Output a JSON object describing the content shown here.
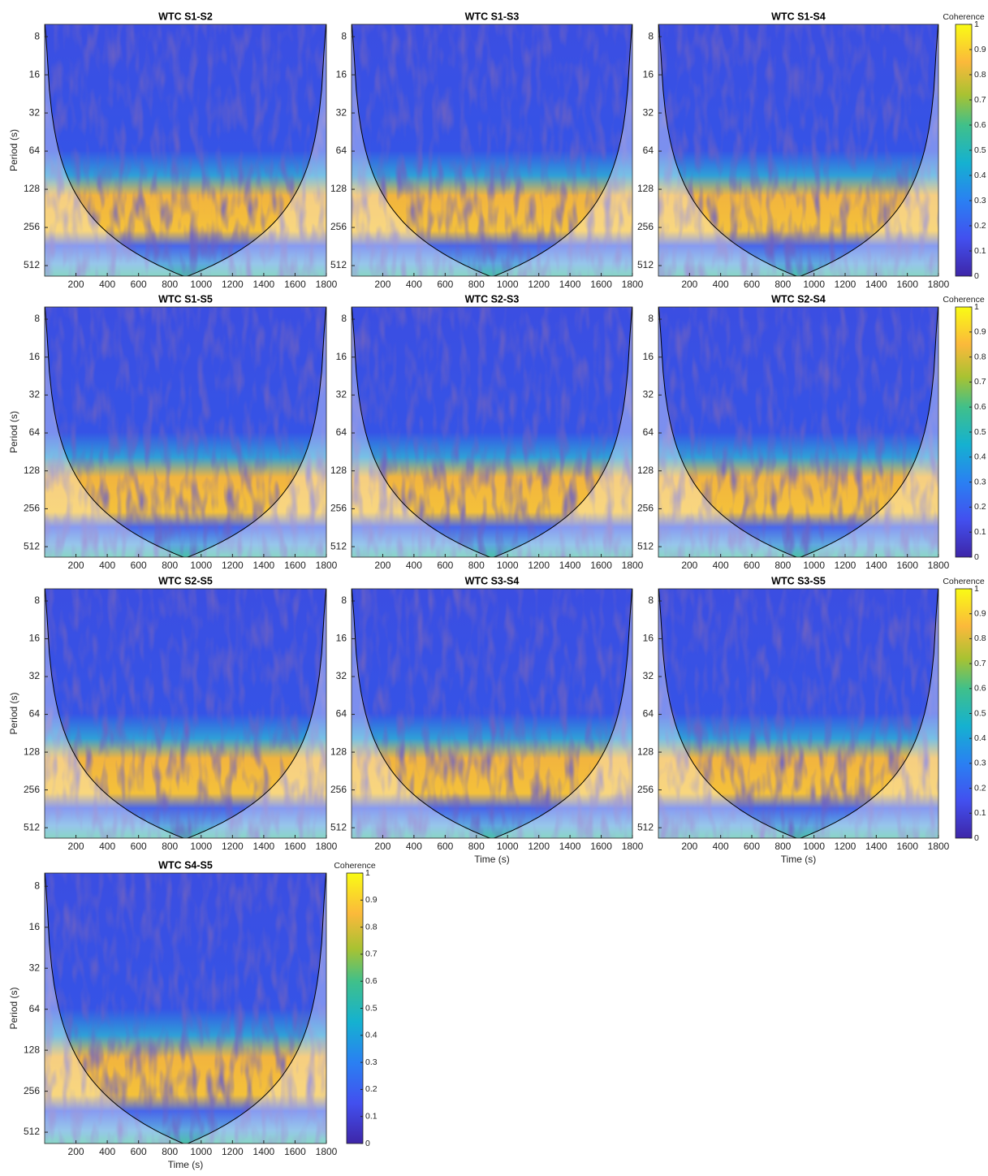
{
  "chart_data": [
    {
      "type": "heatmap",
      "title": "WTC S1-S2",
      "ylabel": "Period (s)",
      "xlim": [
        0,
        1800
      ],
      "xticks": [
        200,
        400,
        600,
        800,
        1000,
        1200,
        1400,
        1600,
        1800
      ],
      "ylim": [
        6.4,
        620
      ],
      "yticks": [
        8,
        16,
        32,
        64,
        128,
        256,
        512
      ],
      "ylog": true
    },
    {
      "type": "heatmap",
      "title": "WTC S1-S3",
      "xlim": [
        0,
        1800
      ],
      "xticks": [
        200,
        400,
        600,
        800,
        1000,
        1200,
        1400,
        1600,
        1800
      ],
      "ylim": [
        6.4,
        620
      ],
      "yticks": [
        8,
        16,
        32,
        64,
        128,
        256,
        512
      ],
      "ylog": true
    },
    {
      "type": "heatmap",
      "title": "WTC S1-S4",
      "xlim": [
        0,
        1800
      ],
      "xticks": [
        200,
        400,
        600,
        800,
        1000,
        1200,
        1400,
        1600,
        1800
      ],
      "ylim": [
        6.4,
        620
      ],
      "yticks": [
        8,
        16,
        32,
        64,
        128,
        256,
        512
      ],
      "ylog": true,
      "colorbar": {
        "label": "Coherence",
        "lim": [
          0,
          1
        ],
        "ticks": [
          0,
          0.1,
          0.2,
          0.3,
          0.4,
          0.5,
          0.6,
          0.7,
          0.8,
          0.9,
          1
        ]
      }
    },
    {
      "type": "heatmap",
      "title": "WTC S1-S5",
      "ylabel": "Period (s)",
      "xlim": [
        0,
        1800
      ],
      "xticks": [
        200,
        400,
        600,
        800,
        1000,
        1200,
        1400,
        1600,
        1800
      ],
      "ylim": [
        6.4,
        620
      ],
      "yticks": [
        8,
        16,
        32,
        64,
        128,
        256,
        512
      ],
      "ylog": true
    },
    {
      "type": "heatmap",
      "title": "WTC S2-S3",
      "xlim": [
        0,
        1800
      ],
      "xticks": [
        200,
        400,
        600,
        800,
        1000,
        1200,
        1400,
        1600,
        1800
      ],
      "ylim": [
        6.4,
        620
      ],
      "yticks": [
        8,
        16,
        32,
        64,
        128,
        256,
        512
      ],
      "ylog": true
    },
    {
      "type": "heatmap",
      "title": "WTC S2-S4",
      "xlim": [
        0,
        1800
      ],
      "xticks": [
        200,
        400,
        600,
        800,
        1000,
        1200,
        1400,
        1600,
        1800
      ],
      "ylim": [
        6.4,
        620
      ],
      "yticks": [
        8,
        16,
        32,
        64,
        128,
        256,
        512
      ],
      "ylog": true,
      "colorbar": {
        "label": "Coherence",
        "lim": [
          0,
          1
        ],
        "ticks": [
          0,
          0.1,
          0.2,
          0.3,
          0.4,
          0.5,
          0.6,
          0.7,
          0.8,
          0.9,
          1
        ]
      }
    },
    {
      "type": "heatmap",
      "title": "WTC S2-S5",
      "ylabel": "Period (s)",
      "xlim": [
        0,
        1800
      ],
      "xticks": [
        200,
        400,
        600,
        800,
        1000,
        1200,
        1400,
        1600,
        1800
      ],
      "ylim": [
        6.4,
        620
      ],
      "yticks": [
        8,
        16,
        32,
        64,
        128,
        256,
        512
      ],
      "ylog": true
    },
    {
      "type": "heatmap",
      "title": "WTC S3-S4",
      "xlabel": "Time (s)",
      "xlim": [
        0,
        1800
      ],
      "xticks": [
        200,
        400,
        600,
        800,
        1000,
        1200,
        1400,
        1600,
        1800
      ],
      "ylim": [
        6.4,
        620
      ],
      "yticks": [
        8,
        16,
        32,
        64,
        128,
        256,
        512
      ],
      "ylog": true
    },
    {
      "type": "heatmap",
      "title": "WTC S3-S5",
      "xlabel": "Time (s)",
      "xlim": [
        0,
        1800
      ],
      "xticks": [
        200,
        400,
        600,
        800,
        1000,
        1200,
        1400,
        1600,
        1800
      ],
      "ylim": [
        6.4,
        620
      ],
      "yticks": [
        8,
        16,
        32,
        64,
        128,
        256,
        512
      ],
      "ylog": true,
      "colorbar": {
        "label": "Coherence",
        "lim": [
          0,
          1
        ],
        "ticks": [
          0,
          0.1,
          0.2,
          0.3,
          0.4,
          0.5,
          0.6,
          0.7,
          0.8,
          0.9,
          1
        ]
      }
    },
    {
      "type": "heatmap",
      "title": "WTC S4-S5",
      "ylabel": "Period (s)",
      "xlabel": "Time (s)",
      "xlim": [
        0,
        1800
      ],
      "xticks": [
        200,
        400,
        600,
        800,
        1000,
        1200,
        1400,
        1600,
        1800
      ],
      "ylim": [
        6.4,
        620
      ],
      "yticks": [
        8,
        16,
        32,
        64,
        128,
        256,
        512
      ],
      "ylog": true,
      "colorbar": {
        "label": "Coherence",
        "lim": [
          0,
          1
        ],
        "ticks": [
          0,
          0.1,
          0.2,
          0.3,
          0.4,
          0.5,
          0.6,
          0.7,
          0.8,
          0.9,
          1
        ]
      }
    }
  ]
}
